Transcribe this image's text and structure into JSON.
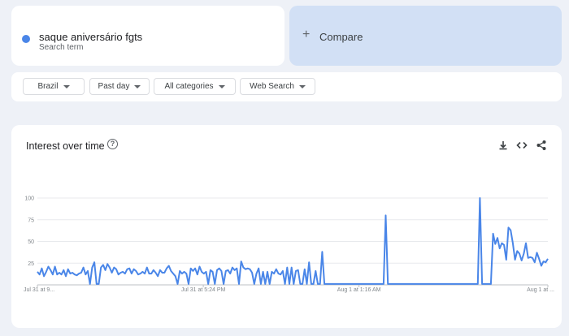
{
  "search_term": {
    "name": "saque aniversário fgts",
    "subtitle": "Search term",
    "color": "#4a86e8"
  },
  "compare": {
    "label": "Compare"
  },
  "filters": {
    "region": "Brazil",
    "time": "Past day",
    "category": "All categories",
    "property": "Web Search"
  },
  "panel": {
    "title": "Interest over time",
    "icons": [
      "help-icon",
      "download-icon",
      "embed-icon",
      "share-icon"
    ]
  },
  "chart_data": {
    "type": "line",
    "series_color": "#4a86e8",
    "ylim": [
      0,
      100
    ],
    "y_ticks": [
      100,
      75,
      50,
      25
    ],
    "x_tick_labels": [
      "Jul 31 at 9...",
      "Jul 31 at 5:24 PM",
      "Aug 1 at 1:16 AM",
      "Aug 1 at ..."
    ],
    "values": [
      15,
      12,
      19,
      10,
      15,
      21,
      17,
      12,
      21,
      12,
      14,
      12,
      17,
      10,
      18,
      13,
      14,
      12,
      11,
      13,
      14,
      20,
      12,
      16,
      1,
      20,
      26,
      1,
      1,
      20,
      23,
      17,
      24,
      20,
      14,
      20,
      18,
      12,
      14,
      15,
      13,
      18,
      19,
      13,
      18,
      16,
      12,
      13,
      15,
      13,
      20,
      13,
      13,
      17,
      14,
      10,
      17,
      14,
      14,
      19,
      22,
      16,
      13,
      10,
      1,
      16,
      13,
      15,
      13,
      1,
      19,
      16,
      19,
      12,
      21,
      15,
      13,
      15,
      1,
      17,
      15,
      1,
      17,
      19,
      16,
      1,
      16,
      17,
      13,
      20,
      17,
      19,
      1,
      27,
      20,
      18,
      19,
      18,
      14,
      1,
      13,
      19,
      1,
      15,
      1,
      15,
      1,
      15,
      13,
      18,
      13,
      12,
      16,
      1,
      20,
      1,
      20,
      1,
      16,
      17,
      1,
      1,
      18,
      1,
      26,
      1,
      1,
      16,
      1,
      1,
      38,
      1,
      1,
      1,
      1,
      1,
      1,
      1,
      1,
      1,
      1,
      1,
      1,
      1,
      1,
      1,
      1,
      1,
      1,
      1,
      1,
      1,
      1,
      1,
      1,
      1,
      1,
      1,
      1,
      80,
      1,
      1,
      1,
      1,
      1,
      1,
      1,
      1,
      1,
      1,
      1,
      1,
      1,
      1,
      1,
      1,
      1,
      1,
      1,
      1,
      1,
      1,
      1,
      1,
      1,
      1,
      1,
      1,
      1,
      1,
      1,
      1,
      1,
      1,
      1,
      1,
      1,
      1,
      1,
      1,
      1,
      1,
      100,
      1,
      1,
      1,
      1,
      1,
      59,
      47,
      54,
      42,
      48,
      46,
      29,
      66,
      63,
      48,
      29,
      39,
      36,
      28,
      36,
      48,
      31,
      32,
      31,
      26,
      37,
      30,
      22,
      27,
      26,
      30
    ]
  }
}
